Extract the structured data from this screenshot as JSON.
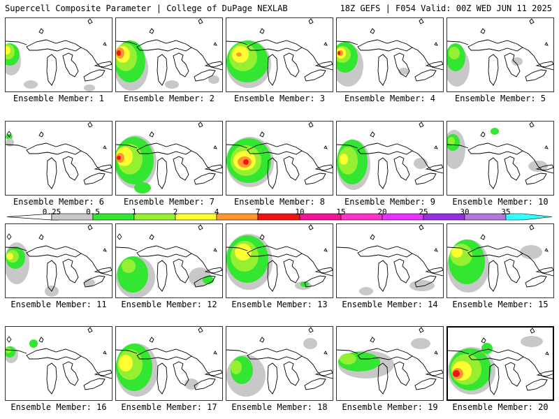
{
  "header": {
    "title_left": "Supercell Composite Parameter | College of DuPage NEXLAB",
    "title_right": "18Z GEFS | F054 Valid: 00Z WED JUN 11 2025"
  },
  "panels": [
    {
      "caption": "Ensemble Member: 1"
    },
    {
      "caption": "Ensemble Member: 2"
    },
    {
      "caption": "Ensemble Member: 3"
    },
    {
      "caption": "Ensemble Member: 4"
    },
    {
      "caption": "Ensemble Member: 5"
    },
    {
      "caption": "Ensemble Member: 6"
    },
    {
      "caption": "Ensemble Member: 7"
    },
    {
      "caption": "Ensemble Member: 8"
    },
    {
      "caption": "Ensemble Member: 9"
    },
    {
      "caption": "Ensemble Member: 10"
    },
    {
      "caption": "Ensemble Member: 11"
    },
    {
      "caption": "Ensemble Member: 12"
    },
    {
      "caption": "Ensemble Member: 13"
    },
    {
      "caption": "Ensemble Member: 14"
    },
    {
      "caption": "Ensemble Member: 15"
    },
    {
      "caption": "Ensemble Member: 16"
    },
    {
      "caption": "Ensemble Member: 17"
    },
    {
      "caption": "Ensemble Member: 18"
    },
    {
      "caption": "Ensemble Member: 19"
    },
    {
      "caption": "Ensemble Member: 20"
    }
  ],
  "colorbar": {
    "labels": [
      "0.25",
      "0.5",
      "1",
      "2",
      "4",
      "7",
      "10",
      "15",
      "20",
      "25",
      "30",
      "35"
    ],
    "colors": [
      "#c8c8c8",
      "#32e632",
      "#96f032",
      "#ffff32",
      "#ff9632",
      "#f01414",
      "#f01496",
      "#ff32c8",
      "#e632ff",
      "#9632dc",
      "#b478dc",
      "#32ffff"
    ],
    "band_colors": {
      "grey": "#c8c8c8",
      "green": "#32e632",
      "lightgreen": "#96f032",
      "yellow": "#ffff32",
      "orange": "#ff9632",
      "red": "#f01414"
    }
  },
  "highlighted_member": "Ensemble Member: 20"
}
